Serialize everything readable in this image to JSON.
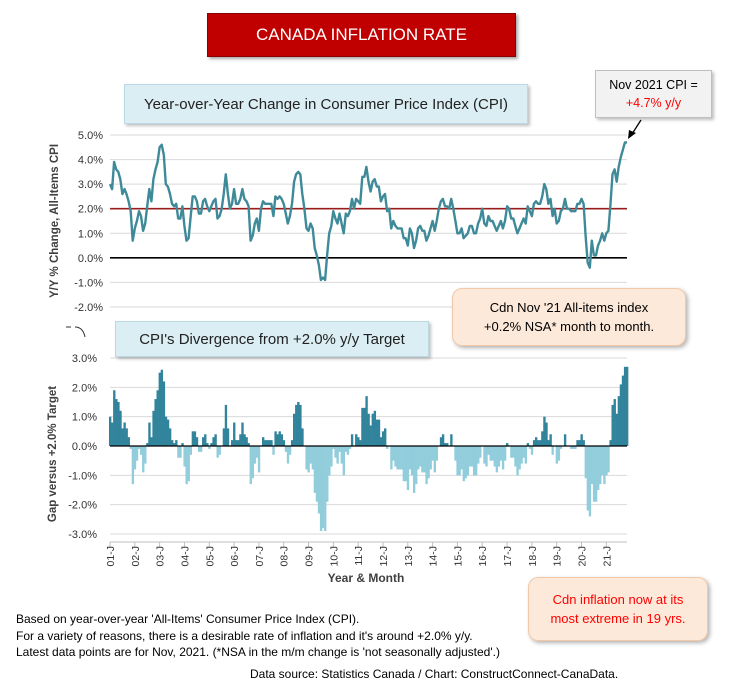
{
  "banner_title": "CANADA INFLATION RATE",
  "chart_data": [
    {
      "type": "line",
      "title": "Year-over-Year Change in Consumer Price Index (CPI)",
      "ylabel": "Y/Y % Change, All-Items CPI",
      "ylim": [
        -2.0,
        5.0
      ],
      "yticks": [
        "5.0%",
        "4.0%",
        "3.0%",
        "2.0%",
        "1.0%",
        "0.0%",
        "-1.0%",
        "-2.0%"
      ],
      "reference_line": {
        "value": 2.0,
        "color": "#9b1c1c"
      },
      "zero_line_color": "#000000",
      "series_color": "#3f8a99",
      "x_start": "2001-01",
      "x_end": "2021-11",
      "annual_values": [
        {
          "year": "01",
          "values": [
            3.0,
            2.8,
            3.9,
            3.6,
            3.5,
            3.2,
            2.6,
            2.8,
            2.6,
            2.3,
            1.9,
            0.7
          ]
        },
        {
          "year": "02",
          "values": [
            1.2,
            1.5,
            1.9,
            1.7,
            1.1,
            1.4,
            2.1,
            2.8,
            2.3,
            3.2,
            3.6,
            3.9
          ]
        },
        {
          "year": "03",
          "values": [
            4.5,
            4.6,
            4.2,
            3.0,
            2.9,
            2.6,
            2.2,
            2.1,
            2.2,
            1.6,
            1.6,
            2.1
          ]
        },
        {
          "year": "04",
          "values": [
            1.3,
            0.7,
            0.8,
            1.7,
            2.5,
            2.5,
            2.3,
            1.8,
            1.8,
            2.3,
            2.4,
            2.1
          ]
        },
        {
          "year": "05",
          "values": [
            1.9,
            2.1,
            2.3,
            2.4,
            1.6,
            1.7,
            2.0,
            2.6,
            3.4,
            2.6,
            2.0,
            2.2
          ]
        },
        {
          "year": "06",
          "values": [
            2.8,
            2.2,
            2.2,
            2.4,
            2.8,
            2.4,
            2.3,
            2.1,
            0.7,
            0.9,
            1.4,
            1.6
          ]
        },
        {
          "year": "07",
          "values": [
            1.1,
            2.0,
            2.3,
            2.2,
            2.2,
            2.2,
            2.2,
            1.7,
            2.5,
            2.4,
            2.5,
            2.4
          ]
        },
        {
          "year": "08",
          "values": [
            2.2,
            1.8,
            1.4,
            1.7,
            2.2,
            3.1,
            3.4,
            3.5,
            3.4,
            2.6,
            2.0,
            1.2
          ]
        },
        {
          "year": "09",
          "values": [
            1.1,
            1.4,
            1.2,
            0.4,
            0.1,
            -0.3,
            -0.9,
            -0.8,
            -0.9,
            0.1,
            1.0,
            1.3
          ]
        },
        {
          "year": "10",
          "values": [
            1.9,
            1.6,
            1.4,
            1.8,
            1.4,
            1.0,
            1.8,
            1.7,
            1.9,
            2.4,
            2.0,
            2.4
          ]
        },
        {
          "year": "11",
          "values": [
            2.3,
            2.2,
            3.3,
            3.3,
            3.7,
            3.1,
            2.7,
            3.1,
            3.2,
            2.9,
            2.9,
            2.3
          ]
        },
        {
          "year": "12",
          "values": [
            2.5,
            2.6,
            1.9,
            2.0,
            1.2,
            1.5,
            1.3,
            1.2,
            1.2,
            1.2,
            0.8,
            0.8
          ]
        },
        {
          "year": "13",
          "values": [
            0.5,
            1.2,
            1.0,
            0.4,
            0.7,
            1.2,
            1.3,
            1.1,
            1.1,
            0.7,
            0.9,
            1.2
          ]
        },
        {
          "year": "14",
          "values": [
            1.5,
            1.1,
            1.5,
            2.0,
            2.3,
            2.4,
            2.1,
            2.1,
            2.0,
            2.4,
            2.0,
            1.5
          ]
        },
        {
          "year": "15",
          "values": [
            1.0,
            1.0,
            1.2,
            0.8,
            0.9,
            1.0,
            1.3,
            1.3,
            1.0,
            1.0,
            1.4,
            1.6
          ]
        },
        {
          "year": "16",
          "values": [
            2.0,
            1.4,
            1.3,
            1.7,
            1.5,
            1.5,
            1.3,
            1.1,
            1.3,
            1.5,
            1.2,
            1.5
          ]
        },
        {
          "year": "17",
          "values": [
            2.1,
            2.0,
            1.6,
            1.6,
            1.3,
            1.0,
            1.2,
            1.4,
            1.6,
            1.4,
            2.1,
            1.9
          ]
        },
        {
          "year": "18",
          "values": [
            1.7,
            2.2,
            2.3,
            2.2,
            2.2,
            2.5,
            3.0,
            2.8,
            2.2,
            2.4,
            1.7,
            2.0
          ]
        },
        {
          "year": "19",
          "values": [
            1.4,
            1.5,
            1.9,
            2.0,
            2.4,
            2.0,
            2.0,
            1.9,
            1.9,
            1.9,
            2.2,
            2.2
          ]
        },
        {
          "year": "20",
          "values": [
            2.4,
            2.2,
            0.9,
            -0.2,
            -0.4,
            0.7,
            0.1,
            0.1,
            0.5,
            0.7,
            1.0,
            0.7
          ]
        },
        {
          "year": "21",
          "values": [
            1.0,
            1.1,
            2.2,
            3.4,
            3.6,
            3.1,
            3.7,
            4.1,
            4.4,
            4.7,
            4.7
          ]
        }
      ]
    },
    {
      "type": "area",
      "title": "CPI's Divergence from +2.0% y/y Target",
      "ylabel": "Gap versus +2.0% Target",
      "xlabel": "Year & Month",
      "ylim": [
        -3.0,
        3.0
      ],
      "yticks": [
        "3.0%",
        "2.0%",
        "1.0%",
        "0.0%",
        "-1.0%",
        "-2.0%",
        "-3.0%"
      ],
      "derived_from": "first chart minus 2.0",
      "positive_color": "#31849b",
      "negative_color": "#92cddc",
      "x_tick_labels": [
        "01-J",
        "02-J",
        "03-J",
        "04-J",
        "05-J",
        "06-J",
        "07-J",
        "08-J",
        "09-J",
        "10-J",
        "11-J",
        "12-J",
        "13-J",
        "14-J",
        "15-J",
        "16-J",
        "17-J",
        "18-J",
        "19-J",
        "20-J",
        "21-J"
      ]
    }
  ],
  "callouts": {
    "cpi_box_line1": "Nov 2021 CPI =",
    "cpi_box_line2": "+4.7% y/y",
    "monthly_line1": "Cdn Nov '21 All-items index",
    "monthly_line2": "+0.2% NSA* month to month.",
    "extreme_line1": "Cdn inflation now at its",
    "extreme_line2": "most extreme in 19 yrs."
  },
  "colors": {
    "banner": "#c00000",
    "highlight_text": "#ff0000",
    "panel_title_bg": "#dbeef4",
    "callout_bg": "#fde9d9"
  },
  "footnotes": {
    "line1": "Based on year-over-year 'All-Items' Consumer Price Index (CPI).",
    "line2": "For a variety of reasons, there is a desirable rate of inflation and it's around +2.0% y/y.",
    "line3": "Latest data points are for Nov, 2021. (*NSA in the m/m change is 'not seasonally adjusted'.)",
    "source": "Data source: Statistics Canada / Chart: ConstructConnect-CanaData."
  }
}
